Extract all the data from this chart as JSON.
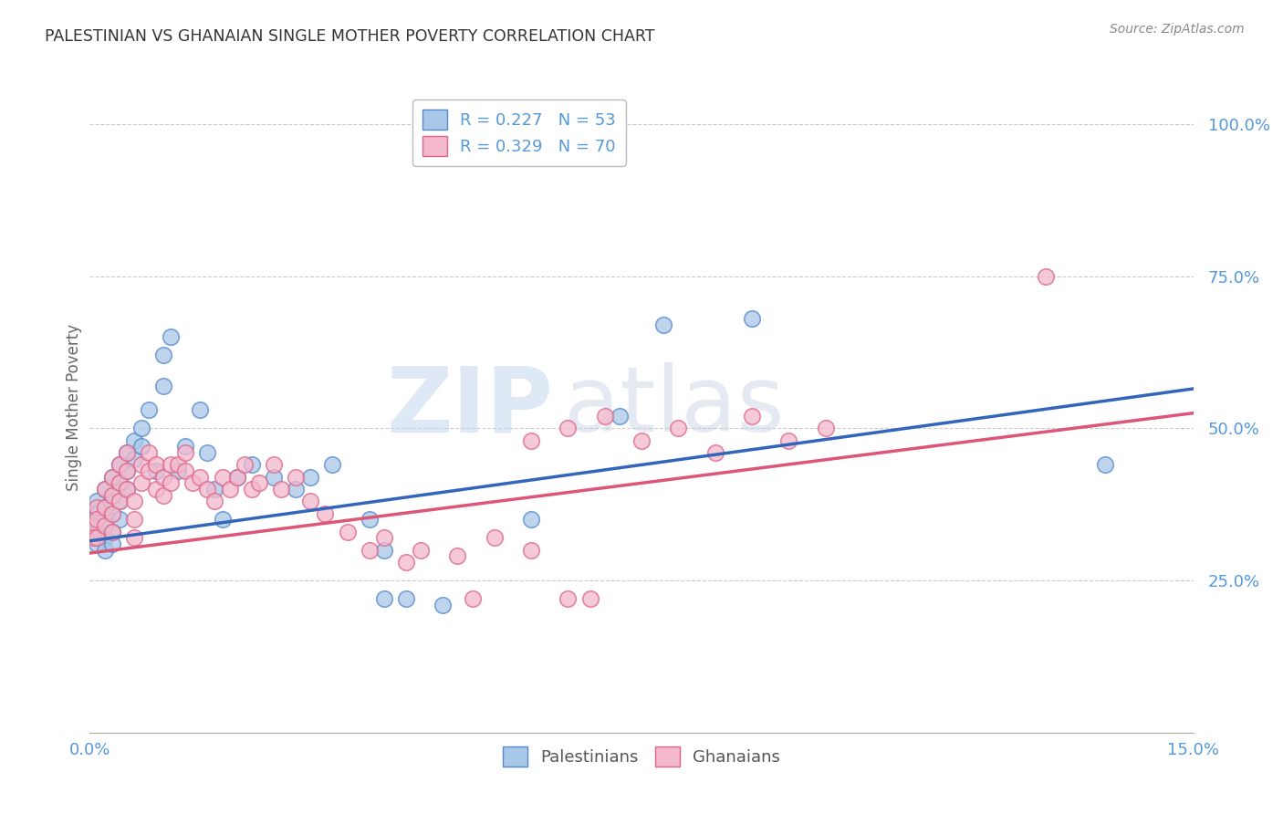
{
  "title": "PALESTINIAN VS GHANAIAN SINGLE MOTHER POVERTY CORRELATION CHART",
  "source": "Source: ZipAtlas.com",
  "ylabel": "Single Mother Poverty",
  "xlim": [
    0.0,
    0.15
  ],
  "ylim": [
    0.0,
    1.07
  ],
  "watermark_zip": "ZIP",
  "watermark_atlas": "atlas",
  "legend_blue": "R = 0.227   N = 53",
  "legend_pink": "R = 0.329   N = 70",
  "color_blue_fill": "#a8c8e8",
  "color_blue_edge": "#5588cc",
  "color_blue_line": "#3366bb",
  "color_pink_fill": "#f4b8cc",
  "color_pink_edge": "#dd6688",
  "color_pink_line": "#dd5577",
  "color_tick": "#5599dd",
  "background_color": "#ffffff",
  "grid_color": "#cccccc",
  "palestinians_x": [
    0.0005,
    0.001,
    0.001,
    0.001,
    0.001,
    0.002,
    0.002,
    0.002,
    0.002,
    0.002,
    0.003,
    0.003,
    0.003,
    0.003,
    0.003,
    0.004,
    0.004,
    0.004,
    0.004,
    0.005,
    0.005,
    0.005,
    0.006,
    0.006,
    0.007,
    0.007,
    0.008,
    0.009,
    0.01,
    0.01,
    0.011,
    0.012,
    0.013,
    0.015,
    0.016,
    0.017,
    0.018,
    0.02,
    0.022,
    0.025,
    0.028,
    0.03,
    0.033,
    0.038,
    0.04,
    0.04,
    0.043,
    0.048,
    0.06,
    0.072,
    0.078,
    0.09,
    0.138
  ],
  "palestinians_y": [
    0.35,
    0.38,
    0.36,
    0.33,
    0.31,
    0.4,
    0.37,
    0.34,
    0.32,
    0.3,
    0.42,
    0.39,
    0.36,
    0.33,
    0.31,
    0.44,
    0.41,
    0.38,
    0.35,
    0.46,
    0.43,
    0.4,
    0.48,
    0.45,
    0.5,
    0.47,
    0.53,
    0.43,
    0.62,
    0.57,
    0.65,
    0.43,
    0.47,
    0.53,
    0.46,
    0.4,
    0.35,
    0.42,
    0.44,
    0.42,
    0.4,
    0.42,
    0.44,
    0.35,
    0.22,
    0.3,
    0.22,
    0.21,
    0.35,
    0.52,
    0.67,
    0.68,
    0.44
  ],
  "ghanaians_x": [
    0.0003,
    0.0005,
    0.001,
    0.001,
    0.001,
    0.002,
    0.002,
    0.002,
    0.003,
    0.003,
    0.003,
    0.003,
    0.004,
    0.004,
    0.004,
    0.005,
    0.005,
    0.005,
    0.006,
    0.006,
    0.006,
    0.007,
    0.007,
    0.008,
    0.008,
    0.009,
    0.009,
    0.01,
    0.01,
    0.011,
    0.011,
    0.012,
    0.013,
    0.013,
    0.014,
    0.015,
    0.016,
    0.017,
    0.018,
    0.019,
    0.02,
    0.021,
    0.022,
    0.023,
    0.025,
    0.026,
    0.028,
    0.03,
    0.032,
    0.035,
    0.038,
    0.04,
    0.043,
    0.045,
    0.05,
    0.055,
    0.06,
    0.065,
    0.068,
    0.052,
    0.06,
    0.065,
    0.07,
    0.075,
    0.08,
    0.085,
    0.09,
    0.095,
    0.1,
    0.13
  ],
  "ghanaians_y": [
    0.34,
    0.32,
    0.37,
    0.35,
    0.32,
    0.4,
    0.37,
    0.34,
    0.42,
    0.39,
    0.36,
    0.33,
    0.44,
    0.41,
    0.38,
    0.46,
    0.43,
    0.4,
    0.38,
    0.35,
    0.32,
    0.44,
    0.41,
    0.46,
    0.43,
    0.4,
    0.44,
    0.42,
    0.39,
    0.44,
    0.41,
    0.44,
    0.46,
    0.43,
    0.41,
    0.42,
    0.4,
    0.38,
    0.42,
    0.4,
    0.42,
    0.44,
    0.4,
    0.41,
    0.44,
    0.4,
    0.42,
    0.38,
    0.36,
    0.33,
    0.3,
    0.32,
    0.28,
    0.3,
    0.29,
    0.32,
    0.3,
    0.22,
    0.22,
    0.22,
    0.48,
    0.5,
    0.52,
    0.48,
    0.5,
    0.46,
    0.52,
    0.48,
    0.5,
    0.75
  ]
}
